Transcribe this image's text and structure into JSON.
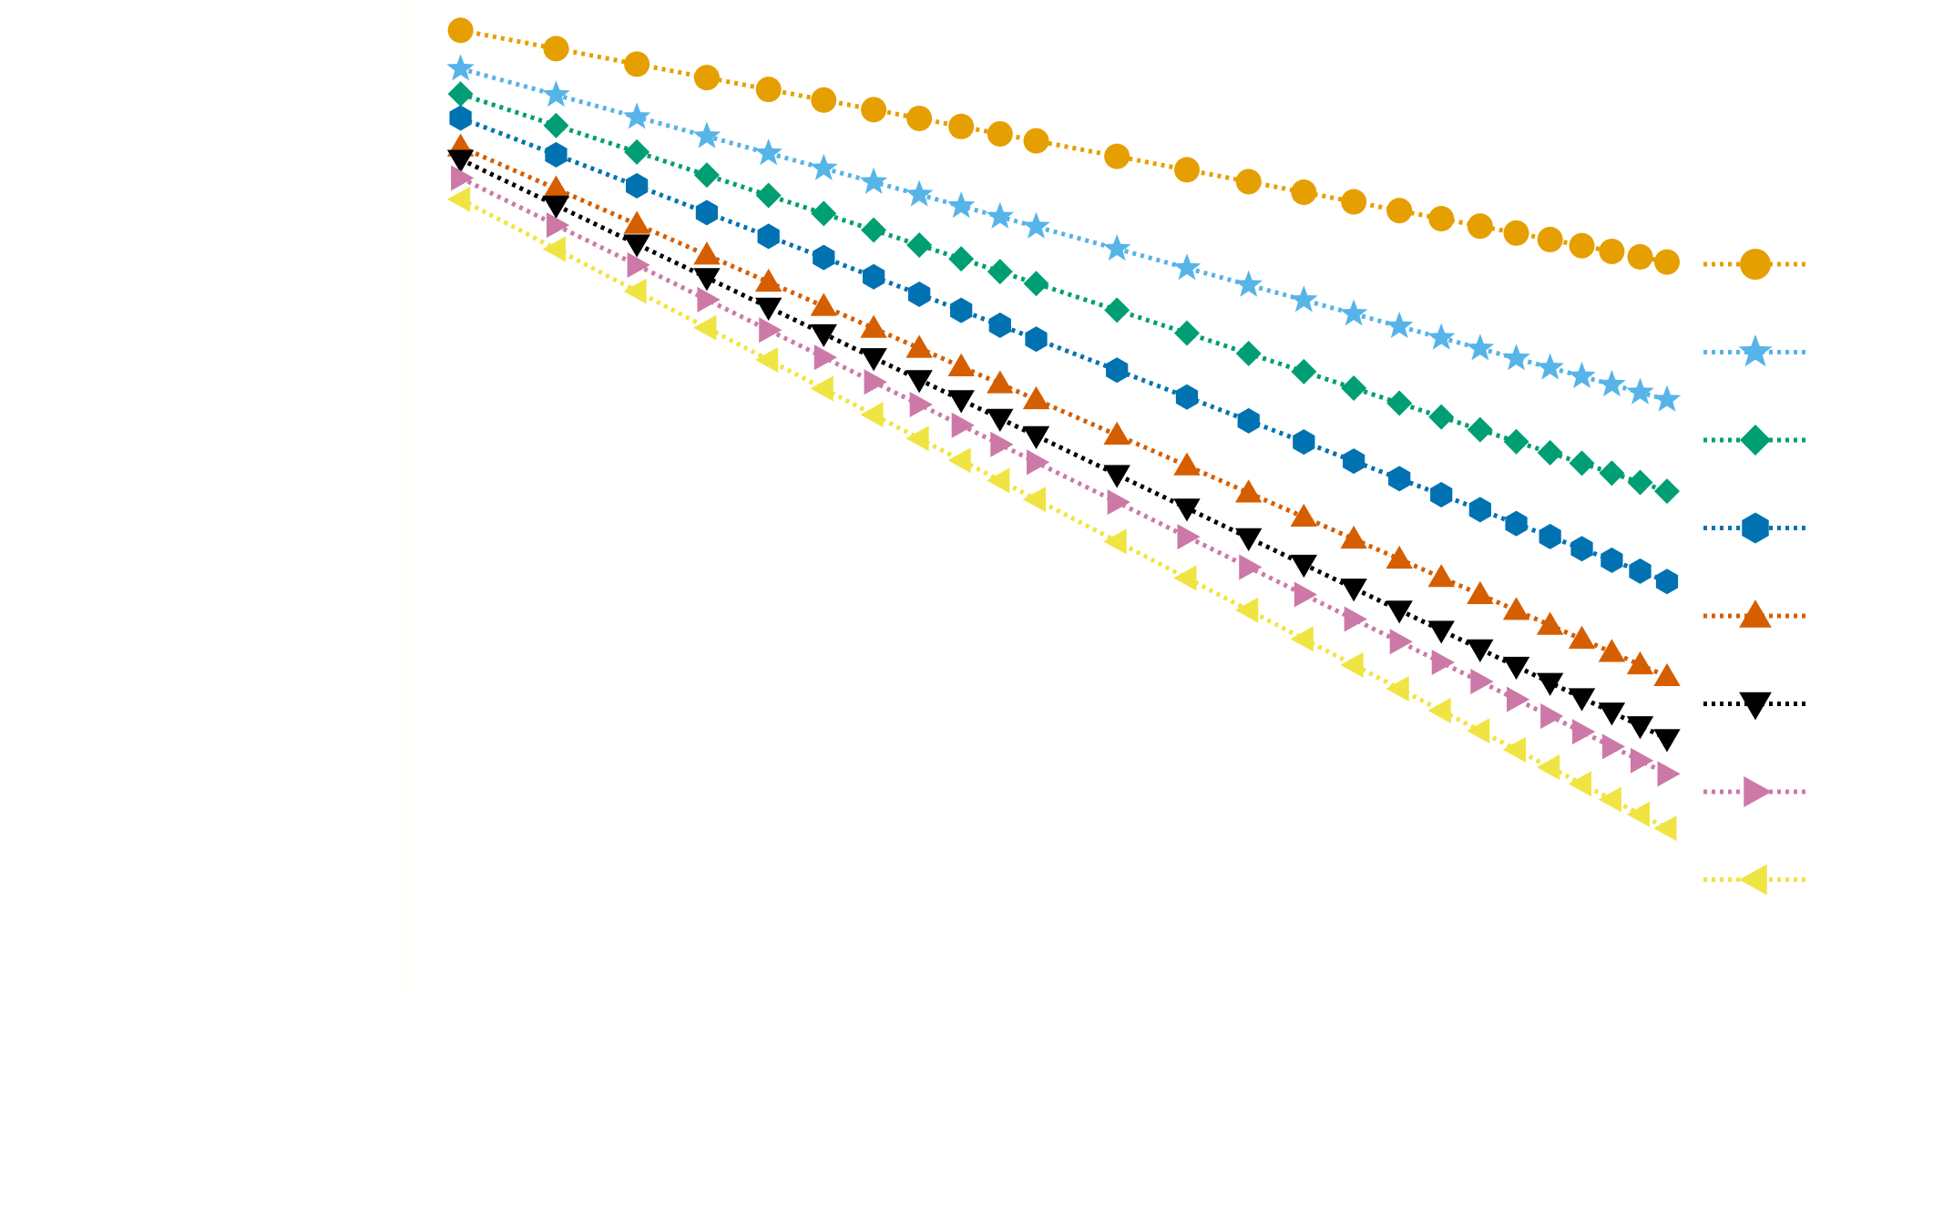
{
  "chart_data": {
    "type": "line",
    "title": "",
    "xlabel": "",
    "ylabel": "",
    "xscale": "log",
    "yscale": "log",
    "xlim": [
      0.9,
      10
    ],
    "ylim": [
      0.001,
      1
    ],
    "grid": false,
    "legend_position": "right",
    "line_style": "dotted",
    "x": [
      1,
      1.2,
      1.4,
      1.6,
      1.8,
      2,
      2.2,
      2.4,
      2.6,
      2.8,
      3,
      3.5,
      4,
      4.5,
      5,
      5.5,
      6,
      6.5,
      7,
      7.5,
      8,
      8.5,
      9,
      9.5,
      10
    ],
    "series": [
      {
        "name": "",
        "marker": "circle",
        "color": "#E69F00",
        "x_start": 1,
        "y_start": 0.81,
        "slope": -0.7
      },
      {
        "name": "",
        "marker": "star",
        "color": "#56B4E9",
        "x_start": 1,
        "y_start": 0.62,
        "slope": -1.0
      },
      {
        "name": "",
        "marker": "diamond",
        "color": "#009E73",
        "x_start": 1,
        "y_start": 0.52,
        "slope": -1.2
      },
      {
        "name": "",
        "marker": "hexagon",
        "color": "#0072B2",
        "x_start": 1,
        "y_start": 0.44,
        "slope": -1.4
      },
      {
        "name": "",
        "marker": "triangle-up",
        "color": "#D55E00",
        "x_start": 1,
        "y_start": 0.36,
        "slope": -1.6
      },
      {
        "name": "",
        "marker": "triangle-down",
        "color": "#000000",
        "x_start": 1,
        "y_start": 0.33,
        "slope": -1.75
      },
      {
        "name": "",
        "marker": "triangle-right",
        "color": "#CC79A7",
        "x_start": 1,
        "y_start": 0.29,
        "slope": -1.8
      },
      {
        "name": "",
        "marker": "triangle-left",
        "color": "#F0E442",
        "x_start": 1,
        "y_start": 0.25,
        "slope": -1.9
      }
    ]
  }
}
